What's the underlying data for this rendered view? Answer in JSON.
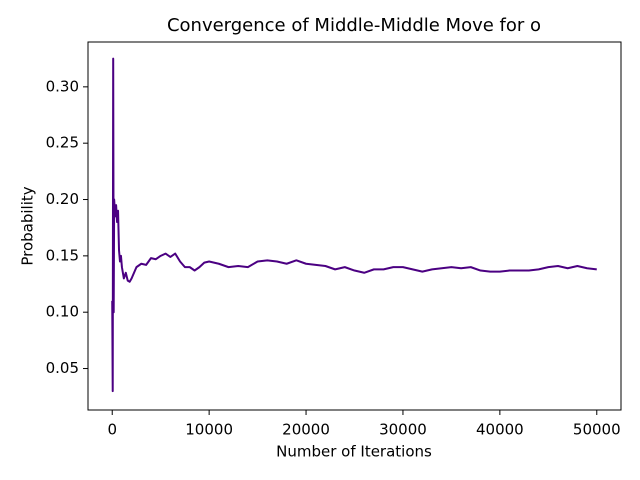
{
  "chart_data": {
    "type": "line",
    "title": "Convergence of Middle-Middle Move for o",
    "x_label": "Number of Iterations",
    "y_label": "Probability",
    "x": [
      0,
      50,
      100,
      150,
      200,
      300,
      400,
      500,
      600,
      700,
      800,
      900,
      1000,
      1200,
      1400,
      1600,
      1800,
      2000,
      2500,
      3000,
      3500,
      4000,
      4500,
      5000,
      5500,
      6000,
      6500,
      7000,
      7500,
      8000,
      8500,
      9000,
      9500,
      10000,
      11000,
      12000,
      13000,
      14000,
      15000,
      16000,
      17000,
      18000,
      19000,
      20000,
      21000,
      22000,
      23000,
      24000,
      25000,
      26000,
      27000,
      28000,
      29000,
      30000,
      31000,
      32000,
      33000,
      34000,
      35000,
      36000,
      37000,
      38000,
      39000,
      40000,
      41000,
      42000,
      43000,
      44000,
      45000,
      46000,
      47000,
      48000,
      49000,
      50000
    ],
    "series": [
      {
        "name": "Middle-Middle",
        "color": "#4b0082",
        "values": [
          0.11,
          0.03,
          0.325,
          0.1,
          0.2,
          0.185,
          0.195,
          0.18,
          0.19,
          0.155,
          0.145,
          0.15,
          0.14,
          0.13,
          0.135,
          0.128,
          0.127,
          0.13,
          0.14,
          0.143,
          0.142,
          0.148,
          0.147,
          0.15,
          0.152,
          0.149,
          0.152,
          0.145,
          0.14,
          0.14,
          0.137,
          0.14,
          0.144,
          0.145,
          0.143,
          0.14,
          0.141,
          0.14,
          0.145,
          0.146,
          0.145,
          0.143,
          0.146,
          0.143,
          0.142,
          0.141,
          0.138,
          0.14,
          0.137,
          0.135,
          0.138,
          0.138,
          0.14,
          0.14,
          0.138,
          0.136,
          0.138,
          0.139,
          0.14,
          0.139,
          0.14,
          0.137,
          0.136,
          0.136,
          0.137,
          0.137,
          0.137,
          0.138,
          0.14,
          0.141,
          0.139,
          0.141,
          0.139,
          0.138
        ]
      }
    ],
    "xlim": [
      -2500,
      52500
    ],
    "ylim": [
      0.0132,
      0.3398
    ],
    "xticks": [
      0,
      10000,
      20000,
      30000,
      40000,
      50000
    ],
    "yticks": [
      0.05,
      {
        "value": 0.1,
        "label": "0.10"
      },
      0.15,
      {
        "value": 0.2,
        "label": "0.20"
      },
      0.25,
      {
        "value": 0.3,
        "label": "0.30"
      }
    ]
  }
}
